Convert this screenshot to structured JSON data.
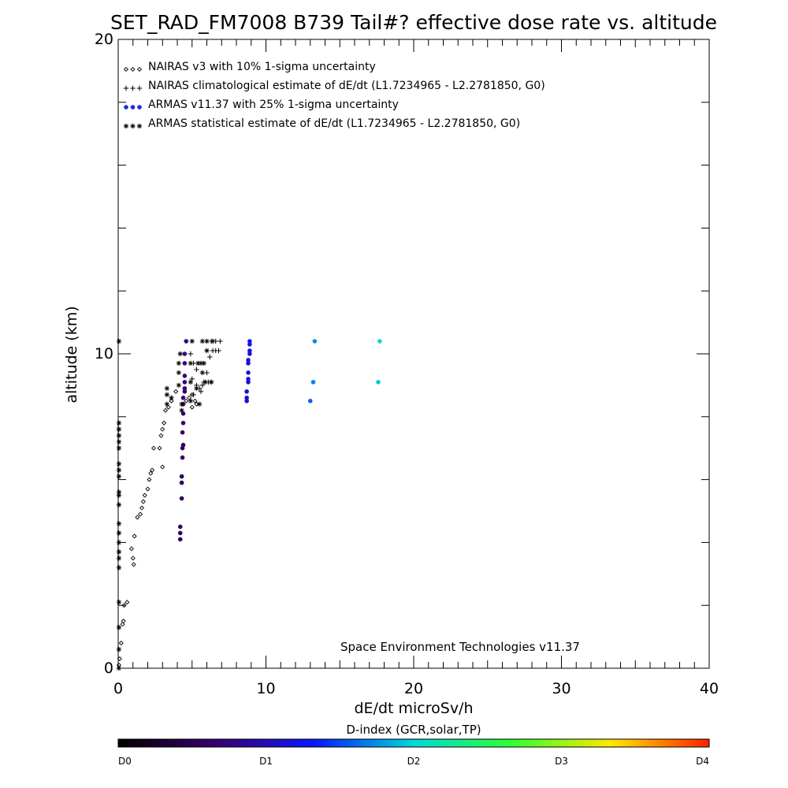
{
  "chart_data": {
    "type": "scatter",
    "title": "SET_RAD_FM7008  B739 Tail#? effective dose rate vs. altitude",
    "xlabel": "dE/dt microSv/h",
    "ylabel": "altitude (km)",
    "xlim": [
      0,
      40
    ],
    "ylim": [
      0,
      20
    ],
    "x_ticks": [
      0,
      10,
      20,
      30,
      40
    ],
    "y_ticks": [
      0,
      10,
      20
    ],
    "x_minor_step": 1,
    "y_minor_step": 2,
    "legend_position": "top-left",
    "credit": "Space Environment Technologies v11.37",
    "colorbar": {
      "title": "D-index (GCR,solar,TP)",
      "labels": [
        {
          "text": "D0",
          "value": 0
        },
        {
          "text": "D1",
          "value": 1
        },
        {
          "text": "D2",
          "value": 2
        },
        {
          "text": "D3",
          "value": 3
        },
        {
          "text": "D4",
          "value": 4
        }
      ],
      "stops": [
        "#000000",
        "#3a006f",
        "#0a18ff",
        "#00d8d8",
        "#30ff30",
        "#ffe800",
        "#ff2000"
      ]
    },
    "series": [
      {
        "name": "NAIRAS v3 with 10% 1-sigma uncertainty",
        "marker": "diamond",
        "color": "#000000",
        "points": [
          [
            0.05,
            0.1
          ],
          [
            0.1,
            0.3
          ],
          [
            0.2,
            0.8
          ],
          [
            0.3,
            1.4
          ],
          [
            0.35,
            1.5
          ],
          [
            0.4,
            2.0
          ],
          [
            0.6,
            2.1
          ],
          [
            0.9,
            3.8
          ],
          [
            1.0,
            3.5
          ],
          [
            1.05,
            3.3
          ],
          [
            1.1,
            4.2
          ],
          [
            1.3,
            4.8
          ],
          [
            1.5,
            4.9
          ],
          [
            1.6,
            5.1
          ],
          [
            1.7,
            5.3
          ],
          [
            1.8,
            5.5
          ],
          [
            2.0,
            5.7
          ],
          [
            2.1,
            6.0
          ],
          [
            2.2,
            6.2
          ],
          [
            2.3,
            6.3
          ],
          [
            2.4,
            7.0
          ],
          [
            2.8,
            7.0
          ],
          [
            3.0,
            6.4
          ],
          [
            2.9,
            7.4
          ],
          [
            3.0,
            7.6
          ],
          [
            3.1,
            7.8
          ],
          [
            3.2,
            8.2
          ],
          [
            3.4,
            8.3
          ],
          [
            3.6,
            8.5
          ],
          [
            3.9,
            8.8
          ],
          [
            4.4,
            8.4
          ],
          [
            4.6,
            8.5
          ],
          [
            4.8,
            8.6
          ],
          [
            5.0,
            8.7
          ],
          [
            5.0,
            8.3
          ],
          [
            5.2,
            8.5
          ],
          [
            5.3,
            8.4
          ]
        ]
      },
      {
        "name": "NAIRAS climatological estimate of dE/dt (L1.7234965 - L2.2781850, G0)",
        "marker": "plus",
        "color": "#000000",
        "points": [
          [
            4.9,
            10.0
          ],
          [
            5.1,
            9.7
          ],
          [
            5.3,
            9.5
          ],
          [
            5.0,
            9.2
          ],
          [
            5.3,
            9.0
          ],
          [
            5.1,
            8.7
          ],
          [
            5.5,
            8.9
          ],
          [
            5.7,
            9.0
          ],
          [
            6.0,
            9.4
          ],
          [
            6.2,
            9.9
          ],
          [
            6.4,
            10.1
          ],
          [
            6.6,
            10.1
          ],
          [
            6.8,
            10.1
          ],
          [
            6.3,
            10.4
          ],
          [
            6.6,
            10.4
          ],
          [
            6.9,
            10.4
          ],
          [
            5.8,
            9.1
          ],
          [
            6.1,
            9.1
          ],
          [
            6.3,
            9.1
          ],
          [
            5.6,
            8.8
          ]
        ]
      },
      {
        "name": "ARMAS v11.37 with 25% 1-sigma uncertainty",
        "marker": "dot",
        "points": [
          [
            4.2,
            4.1
          ],
          [
            4.2,
            4.3
          ],
          [
            4.2,
            4.5
          ],
          [
            4.3,
            5.4
          ],
          [
            4.3,
            5.9
          ],
          [
            4.3,
            6.1
          ],
          [
            4.35,
            6.7
          ],
          [
            4.35,
            7.0
          ],
          [
            4.4,
            7.1
          ],
          [
            4.35,
            7.5
          ],
          [
            4.4,
            7.8
          ],
          [
            4.4,
            8.1
          ],
          [
            4.4,
            8.4
          ],
          [
            4.4,
            8.6
          ],
          [
            4.5,
            8.8
          ],
          [
            4.5,
            8.9
          ],
          [
            4.5,
            9.1
          ],
          [
            4.5,
            9.3
          ],
          [
            4.5,
            9.7
          ],
          [
            4.5,
            10.0
          ],
          [
            4.6,
            10.4
          ],
          [
            8.7,
            8.5
          ],
          [
            8.7,
            8.6
          ],
          [
            8.7,
            8.8
          ],
          [
            8.8,
            9.1
          ],
          [
            8.8,
            9.2
          ],
          [
            8.8,
            9.4
          ],
          [
            8.8,
            9.7
          ],
          [
            8.8,
            9.8
          ],
          [
            8.9,
            10.0
          ],
          [
            8.9,
            10.1
          ],
          [
            8.9,
            10.3
          ],
          [
            8.9,
            10.4
          ],
          [
            13.0,
            8.5
          ],
          [
            13.2,
            9.1
          ],
          [
            13.3,
            10.4
          ],
          [
            17.6,
            9.1
          ],
          [
            17.7,
            10.4
          ]
        ],
        "color_index": [
          0.55,
          0.55,
          0.55,
          0.55,
          0.55,
          0.55,
          0.6,
          0.6,
          0.6,
          0.6,
          0.65,
          0.65,
          0.7,
          0.7,
          0.7,
          0.7,
          0.75,
          0.75,
          0.75,
          0.75,
          0.8,
          1.1,
          1.1,
          1.1,
          1.1,
          1.15,
          1.15,
          1.15,
          1.2,
          1.2,
          1.2,
          1.2,
          1.25,
          1.6,
          1.7,
          1.75,
          1.95,
          2.0
        ]
      },
      {
        "name": "ARMAS statistical estimate of dE/dt (L1.7234965 - L2.2781850, G0)",
        "marker": "asterisk",
        "color": "#000000",
        "points": [
          [
            0.05,
            0.0
          ],
          [
            0.05,
            0.6
          ],
          [
            0.05,
            1.3
          ],
          [
            0.05,
            2.1
          ],
          [
            0.05,
            3.2
          ],
          [
            0.05,
            3.5
          ],
          [
            0.05,
            3.7
          ],
          [
            0.05,
            4.0
          ],
          [
            0.05,
            4.3
          ],
          [
            0.05,
            4.6
          ],
          [
            0.05,
            5.2
          ],
          [
            0.05,
            5.5
          ],
          [
            0.05,
            5.6
          ],
          [
            0.05,
            6.1
          ],
          [
            0.05,
            6.3
          ],
          [
            0.05,
            6.5
          ],
          [
            0.05,
            7.0
          ],
          [
            0.05,
            7.2
          ],
          [
            0.05,
            7.4
          ],
          [
            0.05,
            7.6
          ],
          [
            0.05,
            7.8
          ],
          [
            0.05,
            10.4
          ],
          [
            3.3,
            8.7
          ],
          [
            3.3,
            8.9
          ],
          [
            3.3,
            8.4
          ],
          [
            3.6,
            8.6
          ],
          [
            4.1,
            9.0
          ],
          [
            4.1,
            9.4
          ],
          [
            4.1,
            9.7
          ],
          [
            4.2,
            10.0
          ],
          [
            4.3,
            8.2
          ],
          [
            4.3,
            8.4
          ],
          [
            4.9,
            8.5
          ],
          [
            4.9,
            9.1
          ],
          [
            4.9,
            9.7
          ],
          [
            5.0,
            10.4
          ],
          [
            5.4,
            9.7
          ],
          [
            5.6,
            9.7
          ],
          [
            5.8,
            9.7
          ],
          [
            5.7,
            10.4
          ],
          [
            6.0,
            10.4
          ],
          [
            6.4,
            10.4
          ],
          [
            5.9,
            9.1
          ],
          [
            6.3,
            9.1
          ],
          [
            6.0,
            10.1
          ],
          [
            5.7,
            9.4
          ],
          [
            5.3,
            8.9
          ],
          [
            5.5,
            8.4
          ]
        ]
      }
    ]
  }
}
